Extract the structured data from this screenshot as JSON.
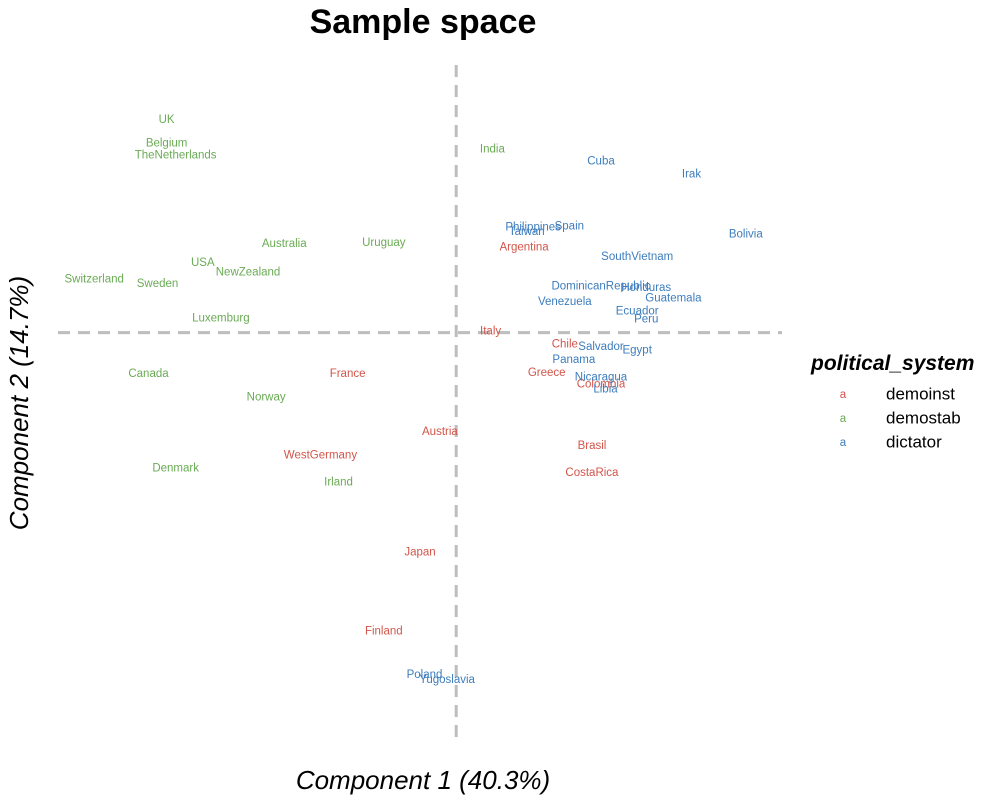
{
  "chart_data": {
    "type": "scatter",
    "title": "Sample space",
    "xlabel": "Component 1 (40.3%)",
    "ylabel": "Component 2 (14.7%)",
    "xlim": [
      -4.4,
      3.6
    ],
    "ylim": [
      -3.55,
      2.35
    ],
    "grid": false,
    "reference_lines": {
      "x": 0,
      "y": 0
    },
    "legend": {
      "title": "political_system",
      "key_glyph": "a",
      "position": "right",
      "entries": [
        {
          "name": "demoinst",
          "color": "#D2554A"
        },
        {
          "name": "demostab",
          "color": "#6AAB55"
        },
        {
          "name": "dictator",
          "color": "#3D7DBD"
        }
      ]
    },
    "points": [
      {
        "label": "UK",
        "x": -3.2,
        "y": 1.8,
        "group": "demostab"
      },
      {
        "label": "Belgium",
        "x": -3.2,
        "y": 1.6,
        "group": "demostab"
      },
      {
        "label": "TheNetherlands",
        "x": -3.1,
        "y": 1.5,
        "group": "demostab"
      },
      {
        "label": "India",
        "x": 0.4,
        "y": 1.55,
        "group": "demostab"
      },
      {
        "label": "Australia",
        "x": -1.9,
        "y": 0.75,
        "group": "demostab"
      },
      {
        "label": "Uruguay",
        "x": -0.8,
        "y": 0.76,
        "group": "demostab"
      },
      {
        "label": "USA",
        "x": -2.8,
        "y": 0.59,
        "group": "demostab"
      },
      {
        "label": "NewZealand",
        "x": -2.3,
        "y": 0.51,
        "group": "demostab"
      },
      {
        "label": "Switzerland",
        "x": -4.0,
        "y": 0.45,
        "group": "demostab"
      },
      {
        "label": "Sweden",
        "x": -3.3,
        "y": 0.41,
        "group": "demostab"
      },
      {
        "label": "Luxemburg",
        "x": -2.6,
        "y": 0.12,
        "group": "demostab"
      },
      {
        "label": "Canada",
        "x": -3.4,
        "y": -0.35,
        "group": "demostab"
      },
      {
        "label": "Norway",
        "x": -2.1,
        "y": -0.55,
        "group": "demostab"
      },
      {
        "label": "Denmark",
        "x": -3.1,
        "y": -1.15,
        "group": "demostab"
      },
      {
        "label": "Irland",
        "x": -1.3,
        "y": -1.27,
        "group": "demostab"
      },
      {
        "label": "Argentina",
        "x": 0.75,
        "y": 0.72,
        "group": "demoinst"
      },
      {
        "label": "Italy",
        "x": 0.38,
        "y": 0.01,
        "group": "demoinst"
      },
      {
        "label": "Chile",
        "x": 1.2,
        "y": -0.1,
        "group": "demoinst"
      },
      {
        "label": "Greece",
        "x": 1.0,
        "y": -0.34,
        "group": "demoinst"
      },
      {
        "label": "Colombia",
        "x": 1.6,
        "y": -0.44,
        "group": "demoinst"
      },
      {
        "label": "France",
        "x": -1.2,
        "y": -0.35,
        "group": "demoinst"
      },
      {
        "label": "Austria",
        "x": -0.18,
        "y": -0.84,
        "group": "demoinst"
      },
      {
        "label": "Brasil",
        "x": 1.5,
        "y": -0.96,
        "group": "demoinst"
      },
      {
        "label": "WestGermany",
        "x": -1.5,
        "y": -1.04,
        "group": "demoinst"
      },
      {
        "label": "CostaRica",
        "x": 1.5,
        "y": -1.19,
        "group": "demoinst"
      },
      {
        "label": "Japan",
        "x": -0.4,
        "y": -1.86,
        "group": "demoinst"
      },
      {
        "label": "Finland",
        "x": -0.8,
        "y": -2.53,
        "group": "demoinst"
      },
      {
        "label": "Cuba",
        "x": 1.6,
        "y": 1.45,
        "group": "dictator"
      },
      {
        "label": "Irak",
        "x": 2.6,
        "y": 1.34,
        "group": "dictator"
      },
      {
        "label": "Spain",
        "x": 1.25,
        "y": 0.9,
        "group": "dictator"
      },
      {
        "label": "Philippines",
        "x": 0.85,
        "y": 0.89,
        "group": "dictator"
      },
      {
        "label": "Taiwan",
        "x": 0.78,
        "y": 0.85,
        "group": "dictator"
      },
      {
        "label": "Bolivia",
        "x": 3.2,
        "y": 0.83,
        "group": "dictator"
      },
      {
        "label": "SouthVietnam",
        "x": 2.0,
        "y": 0.64,
        "group": "dictator"
      },
      {
        "label": "DominicanRepublic",
        "x": 1.6,
        "y": 0.39,
        "group": "dictator"
      },
      {
        "label": "Honduras",
        "x": 2.1,
        "y": 0.38,
        "group": "dictator"
      },
      {
        "label": "Guatemala",
        "x": 2.4,
        "y": 0.29,
        "group": "dictator"
      },
      {
        "label": "Venezuela",
        "x": 1.2,
        "y": 0.26,
        "group": "dictator"
      },
      {
        "label": "Ecuador",
        "x": 2.0,
        "y": 0.18,
        "group": "dictator"
      },
      {
        "label": "Peru",
        "x": 2.1,
        "y": 0.11,
        "group": "dictator"
      },
      {
        "label": "Salvador",
        "x": 1.6,
        "y": -0.12,
        "group": "dictator"
      },
      {
        "label": "Egypt",
        "x": 2.0,
        "y": -0.15,
        "group": "dictator"
      },
      {
        "label": "Panama",
        "x": 1.3,
        "y": -0.23,
        "group": "dictator"
      },
      {
        "label": "Nicaragua",
        "x": 1.6,
        "y": -0.38,
        "group": "dictator"
      },
      {
        "label": "Libia",
        "x": 1.65,
        "y": -0.48,
        "group": "dictator"
      },
      {
        "label": "Poland",
        "x": -0.35,
        "y": -2.9,
        "group": "dictator"
      },
      {
        "label": "Yugoslavia",
        "x": -0.1,
        "y": -2.94,
        "group": "dictator"
      }
    ]
  }
}
